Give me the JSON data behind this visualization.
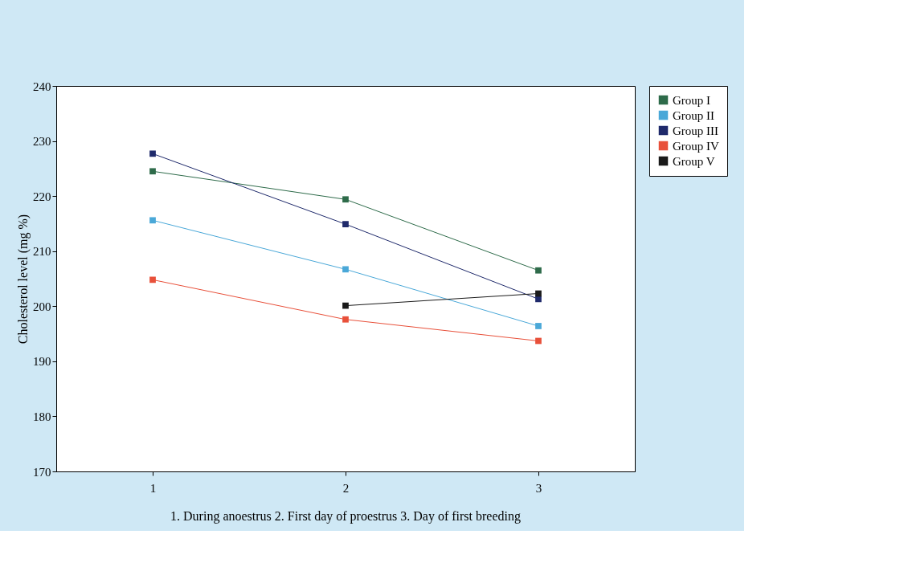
{
  "chart_data": {
    "type": "line",
    "ylabel": "Cholesterol level (mg %)",
    "categories": [
      "1",
      "2",
      "3"
    ],
    "series": [
      {
        "name": "Group I",
        "color": "#2e6b4a",
        "values": [
          224.5,
          219.4,
          206.5
        ]
      },
      {
        "name": "Group II",
        "color": "#4aa8d8",
        "values": [
          215.6,
          206.7,
          196.4
        ]
      },
      {
        "name": "Group III",
        "color": "#1f2a6b",
        "values": [
          227.7,
          214.9,
          201.3
        ]
      },
      {
        "name": "Group IV",
        "color": "#e8503a",
        "values": [
          204.8,
          197.6,
          193.7
        ]
      },
      {
        "name": "Group V",
        "color": "#1a1a1a",
        "values": [
          null,
          200.1,
          202.3
        ]
      }
    ],
    "ylim": [
      170,
      240
    ],
    "yticks": [
      170,
      180,
      190,
      200,
      210,
      220,
      230,
      240
    ],
    "grid": false,
    "legend": "right",
    "marker": "square",
    "line_style": "solid",
    "annotations": [
      "1. During anoestrus    2. First day of proestrus    3. Day of first breeding"
    ]
  }
}
